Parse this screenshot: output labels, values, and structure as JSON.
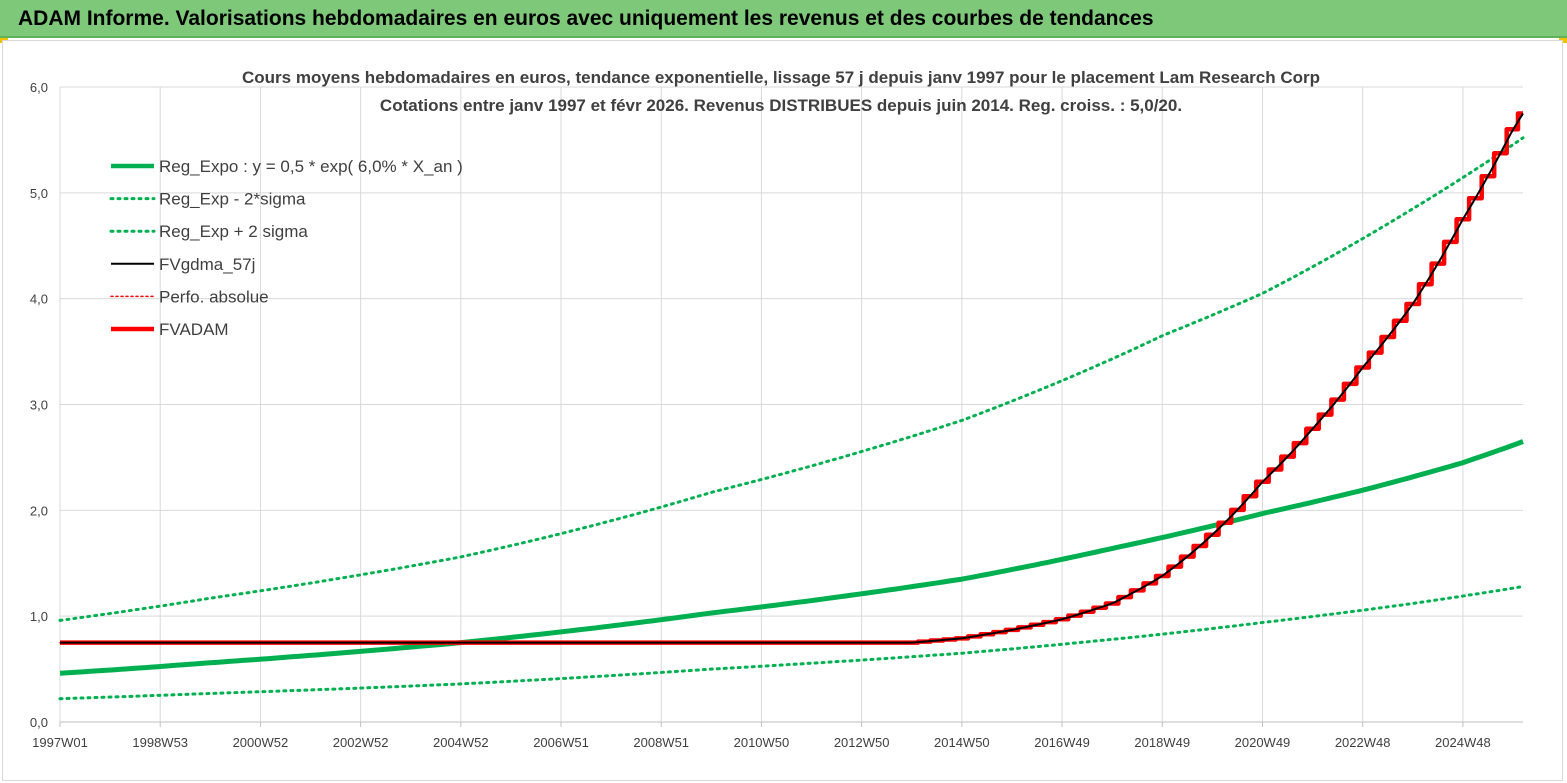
{
  "header": {
    "title": "ADAM Informe. Valorisations hebdomadaires en euros avec uniquement les revenus et des courbes de tendances"
  },
  "colors": {
    "header_bg": "#7ec87a",
    "reg_expo": "#00b050",
    "fvgdma": "#000000",
    "perfo": "#ff0000",
    "fvadam": "#ff0000",
    "grid": "#d9d9d9"
  },
  "chart_data": {
    "type": "line",
    "title_lines": [
      "Cours moyens hebdomadaires en euros, tendance exponentielle, lissage 57 j depuis janv 1997 pour le placement Lam Research Corp",
      "Cotations entre janv 1997 et févr 2026. Revenus DISTRIBUES depuis juin 2014. Reg. croiss. : 5,0/20."
    ],
    "xlabel": "",
    "ylabel": "",
    "x_range": [
      1997.0,
      2026.2
    ],
    "ylim": [
      0,
      6
    ],
    "y_ticks": [
      "0,0",
      "1,0",
      "2,0",
      "3,0",
      "4,0",
      "5,0",
      "6,0"
    ],
    "x_ticks": [
      {
        "label": "1997W01",
        "x": 1997.0
      },
      {
        "label": "1998W53",
        "x": 1999.0
      },
      {
        "label": "2000W52",
        "x": 2001.0
      },
      {
        "label": "2002W52",
        "x": 2003.0
      },
      {
        "label": "2004W52",
        "x": 2005.0
      },
      {
        "label": "2006W51",
        "x": 2007.0
      },
      {
        "label": "2008W51",
        "x": 2009.0
      },
      {
        "label": "2010W50",
        "x": 2011.0
      },
      {
        "label": "2012W50",
        "x": 2013.0
      },
      {
        "label": "2014W50",
        "x": 2015.0
      },
      {
        "label": "2016W49",
        "x": 2017.0
      },
      {
        "label": "2018W49",
        "x": 2019.0
      },
      {
        "label": "2020W49",
        "x": 2021.0
      },
      {
        "label": "2022W48",
        "x": 2023.0
      },
      {
        "label": "2024W48",
        "x": 2025.0
      }
    ],
    "grid": true,
    "legend_position": "top-left",
    "legend": [
      {
        "label": "Reg_Expo : y = 0,5 * exp( 6,0% *  X_an )",
        "series": "reg_expo"
      },
      {
        "label": "Reg_Exp - 2*sigma",
        "series": "reg_exp_minus"
      },
      {
        "label": "Reg_Exp + 2 sigma",
        "series": "reg_exp_plus"
      },
      {
        "label": "FVgdma_57j",
        "series": "fvgdma"
      },
      {
        "label": "Perfo. absolue",
        "series": "perfo"
      },
      {
        "label": "FVADAM",
        "series": "fvadam"
      }
    ],
    "series": [
      {
        "name": "Reg_Expo : y = 0,5 * exp( 6,0% *  X_an )",
        "key": "reg_expo",
        "color": "#00b050",
        "style": "solid-thick",
        "x": [
          1997.0,
          2000.0,
          2005.0,
          2010.0,
          2015.0,
          2018.0,
          2021.0,
          2023.0,
          2025.0,
          2026.2
        ],
        "y": [
          0.46,
          0.56,
          0.75,
          1.03,
          1.35,
          1.64,
          1.97,
          2.19,
          2.45,
          2.65
        ]
      },
      {
        "name": "Reg_Exp - 2*sigma",
        "key": "reg_exp_minus",
        "color": "#00b050",
        "style": "dotted",
        "x": [
          1997.0,
          2000.0,
          2005.0,
          2010.0,
          2015.0,
          2019.0,
          2021.0,
          2024.0,
          2026.2
        ],
        "y": [
          0.22,
          0.27,
          0.36,
          0.5,
          0.65,
          0.83,
          0.94,
          1.12,
          1.28
        ]
      },
      {
        "name": "Reg_Exp + 2 sigma",
        "key": "reg_exp_plus",
        "color": "#00b050",
        "style": "dotted",
        "x": [
          1997.0,
          2000.0,
          2005.0,
          2010.0,
          2015.0,
          2019.0,
          2021.0,
          2024.0,
          2026.2
        ],
        "y": [
          0.96,
          1.17,
          1.56,
          2.17,
          2.85,
          3.65,
          4.05,
          4.85,
          5.52
        ]
      },
      {
        "name": "FVgdma_57j",
        "key": "fvgdma",
        "color": "#000000",
        "style": "solid",
        "x": [
          1997.0,
          2014.0,
          2015.0,
          2016.0,
          2017.0,
          2018.0,
          2019.0,
          2020.0,
          2021.0,
          2022.0,
          2023.0,
          2024.0,
          2025.0,
          2026.0,
          2026.2
        ],
        "y": [
          0.75,
          0.75,
          0.79,
          0.87,
          0.97,
          1.12,
          1.38,
          1.77,
          2.27,
          2.77,
          3.35,
          3.95,
          4.75,
          5.6,
          5.75
        ]
      },
      {
        "name": "Perfo. absolue",
        "key": "perfo",
        "color": "#ff0000",
        "style": "dotted-thin",
        "x": [
          1997.0,
          2014.0,
          2015.0,
          2016.0,
          2017.0,
          2018.0,
          2019.0,
          2020.0,
          2021.0,
          2022.0,
          2023.0,
          2024.0,
          2025.0,
          2026.0,
          2026.2
        ],
        "y": [
          0.75,
          0.75,
          0.79,
          0.87,
          0.97,
          1.12,
          1.38,
          1.77,
          2.27,
          2.77,
          3.35,
          3.95,
          4.75,
          5.6,
          5.75
        ]
      },
      {
        "name": "FVADAM",
        "key": "fvadam",
        "color": "#ff0000",
        "style": "solid-thick-stepped",
        "x": [
          1997.0,
          2014.0,
          2015.0,
          2016.0,
          2017.0,
          2018.0,
          2019.0,
          2020.0,
          2021.0,
          2022.0,
          2023.0,
          2024.0,
          2025.0,
          2026.0,
          2026.2
        ],
        "y": [
          0.75,
          0.75,
          0.79,
          0.87,
          0.97,
          1.12,
          1.38,
          1.77,
          2.27,
          2.77,
          3.35,
          3.95,
          4.75,
          5.6,
          5.75
        ]
      }
    ]
  }
}
